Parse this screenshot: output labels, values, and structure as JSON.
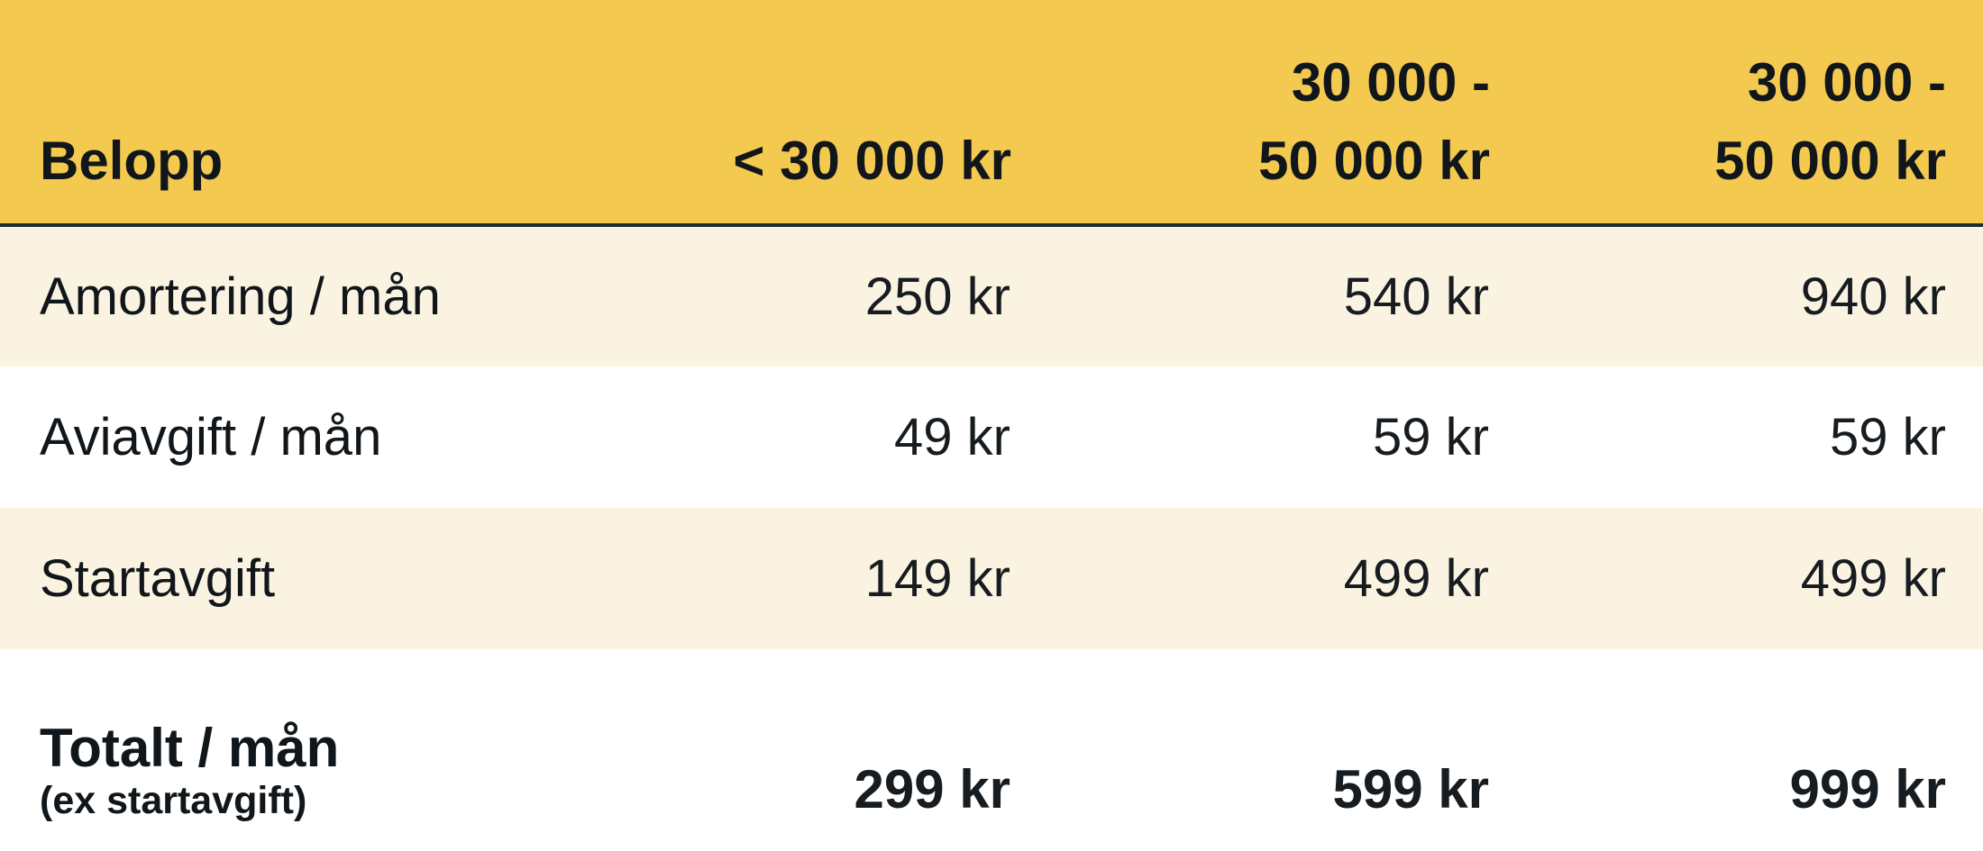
{
  "chart_data": {
    "type": "table",
    "title": "",
    "columns": [
      "Belopp",
      "< 30 000 kr",
      "30 000 - 50 000 kr",
      "30 000 - 50 000 kr"
    ],
    "rows": [
      [
        "Amortering / mån",
        "250 kr",
        "540 kr",
        "940 kr"
      ],
      [
        "Aviavgift / mån",
        "49 kr",
        "59 kr",
        "59 kr"
      ],
      [
        "Startavgift",
        "149 kr",
        "499 kr",
        "499 kr"
      ],
      [
        "Totalt / mån (ex startavgift)",
        "299 kr",
        "599 kr",
        "999 kr"
      ]
    ]
  },
  "ui": {
    "header": {
      "col1": "Belopp",
      "col2": "< 30 000 kr",
      "col3": "30 000 -\n50 000 kr",
      "col4": "30 000 -\n50 000 kr"
    },
    "rows": [
      {
        "label": "Amortering / mån",
        "values": [
          "250 kr",
          "540 kr",
          "940 kr"
        ]
      },
      {
        "label": "Aviavgift / mån",
        "values": [
          "49 kr",
          "59 kr",
          "59 kr"
        ]
      },
      {
        "label": "Startavgift",
        "values": [
          "149 kr",
          "499 kr",
          "499 kr"
        ]
      }
    ],
    "total_row": {
      "label": "Totalt / mån",
      "note": "(ex startavgift)",
      "values": [
        "299 kr",
        "599 kr",
        "999 kr"
      ]
    }
  },
  "colors": {
    "header_bg": "#F3C950",
    "row_alt_bg": "#FAF3E1",
    "row_bg": "#FFFFFF",
    "divider": "#1E2B33",
    "text": "#10161A"
  }
}
